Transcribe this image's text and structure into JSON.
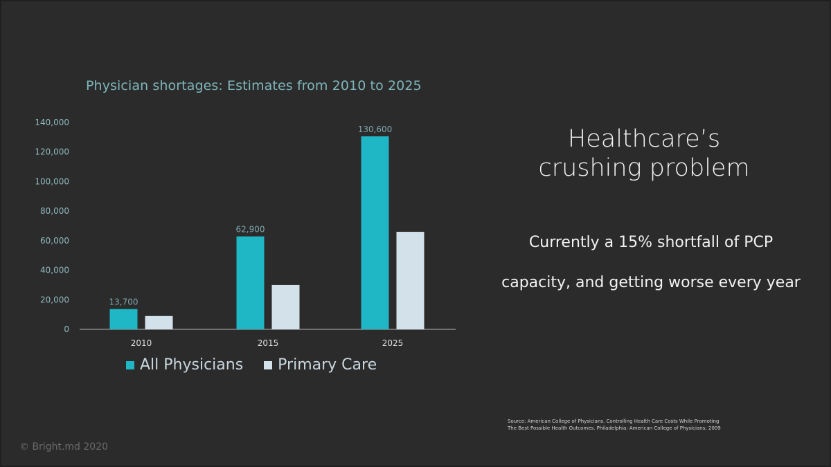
{
  "chart_data": {
    "type": "bar",
    "title": "Physician shortages: Estimates from 2010 to 2025",
    "categories": [
      "2010",
      "2015",
      "2025"
    ],
    "series": [
      {
        "name": "All Physicians",
        "values": [
          13700,
          62900,
          130600
        ],
        "color": "#1fb6c5",
        "data_labels": [
          "13,700",
          "62,900",
          "130,600"
        ]
      },
      {
        "name": "Primary Care",
        "values": [
          9000,
          30000,
          66000
        ],
        "color": "#d3e2ea"
      }
    ],
    "ylim": [
      0,
      140000
    ],
    "yticks": [
      0,
      20000,
      40000,
      60000,
      80000,
      100000,
      120000,
      140000
    ],
    "ytick_labels": [
      "0",
      "20,000",
      "40,000",
      "60,000",
      "80,000",
      "100,000",
      "120,000",
      "140,000"
    ],
    "xlabel": "",
    "ylabel": "",
    "grid": false,
    "legend_position": "bottom"
  },
  "headline": {
    "line1": "Healthcare’s",
    "line2": "crushing problem"
  },
  "subtext": {
    "line1": "Currently a 15% shortfall of PCP",
    "line2": "capacity, and getting worse every year"
  },
  "source": {
    "line1": "Source: American College of Physicians. Controlling Health Care Costs While Promoting",
    "line2": "The Best Possible Health Outcomes. Philadelphia: American College of Physicians; 2009"
  },
  "copyright": "© Bright.md 2020"
}
